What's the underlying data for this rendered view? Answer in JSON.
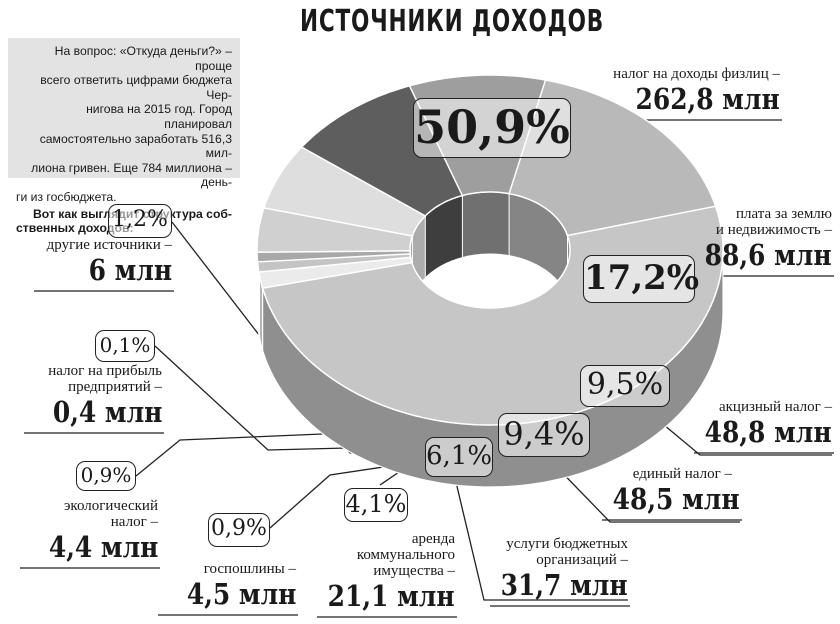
{
  "title": "ИСТОЧНИКИ ДОХОДОВ",
  "intro": {
    "lines": [
      "На вопрос: «Откуда деньги?» – проще",
      "всего ответить цифрами бюджета Чер-",
      "нигова на 2015 год. Город планировал",
      "самостоятельно заработать 516,3 мил-",
      "лиона гривен. Еще 784 миллиона – день-",
      "ги из госбюджета."
    ],
    "bold_lines": [
      "Вот как выглядит структура соб-",
      "ственных доходов:"
    ]
  },
  "chart_data": {
    "type": "pie",
    "title": "ИСТОЧНИКИ ДОХОДОВ",
    "unit": "млн",
    "slices": [
      {
        "label_lines": [
          "налог на доходы физлиц –"
        ],
        "value": 262.8,
        "value_text": "262,8 млн",
        "percent_text": "50,9%",
        "color": "#c6c6c6",
        "side": "#8f8f8f"
      },
      {
        "label_lines": [
          "плата за землю",
          "и недвижимость –"
        ],
        "value": 88.6,
        "value_text": "88,6 млн",
        "percent_text": "17,2%",
        "color": "#b9b9b9",
        "side": "#858585"
      },
      {
        "label_lines": [
          "акцизный налог –"
        ],
        "value": 48.8,
        "value_text": "48,8 млн",
        "percent_text": "9,5%",
        "color": "#9e9e9e",
        "side": "#707070"
      },
      {
        "label_lines": [
          "единый налог –"
        ],
        "value": 48.5,
        "value_text": "48,5 млн",
        "percent_text": "9,4%",
        "color": "#5e5e5e",
        "side": "#3e3e3e"
      },
      {
        "label_lines": [
          "услуги бюджетных",
          "организаций –"
        ],
        "value": 31.7,
        "value_text": "31,7 млн",
        "percent_text": "6,1%",
        "color": "#dedede",
        "side": "#acacac"
      },
      {
        "label_lines": [
          "аренда",
          "коммунального",
          "имущества –"
        ],
        "value": 21.1,
        "value_text": "21,1 млн",
        "percent_text": "4,1%",
        "color": "#d0d0d0",
        "side": "#a0a0a0"
      },
      {
        "label_lines": [
          "госпошлины –"
        ],
        "value": 4.5,
        "value_text": "4,5 млн",
        "percent_text": "0,9%",
        "color": "#a8a8a8",
        "side": "#7a7a7a"
      },
      {
        "label_lines": [
          "экологический",
          "налог –"
        ],
        "value": 4.4,
        "value_text": "4,4 млн",
        "percent_text": "0,9%",
        "color": "#c4c4c4",
        "side": "#909090"
      },
      {
        "label_lines": [
          "налог на прибыль",
          "предприятий –"
        ],
        "value": 0.4,
        "value_text": "0,4 млн",
        "percent_text": "0,1%",
        "color": "#8a8a8a",
        "side": "#606060"
      },
      {
        "label_lines": [
          "другие источники –"
        ],
        "value": 6.0,
        "value_text": "6 млн",
        "percent_text": "1,2%",
        "color": "#ebebeb",
        "side": "#b5b5b5"
      }
    ]
  }
}
